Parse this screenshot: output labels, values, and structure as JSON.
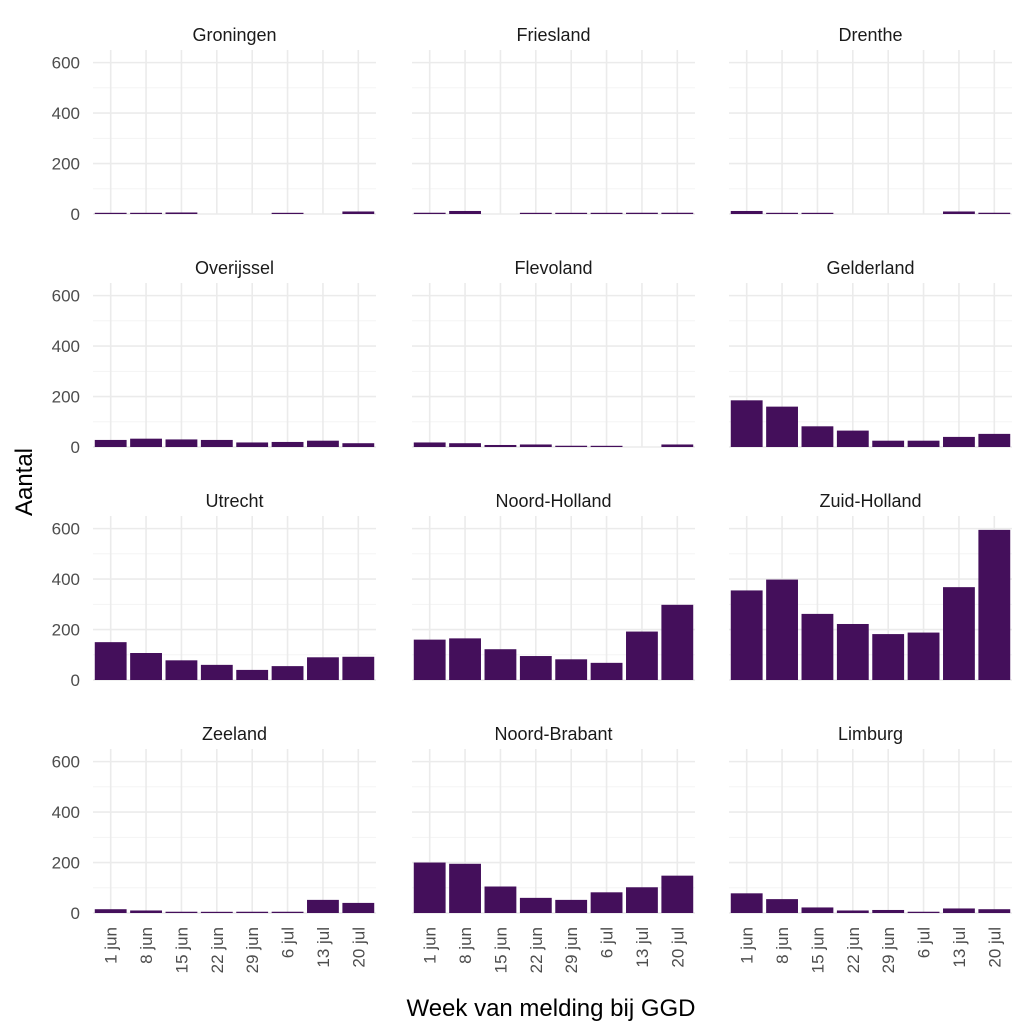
{
  "chart_data": {
    "type": "bar",
    "xlabel": "Week van melding bij GGD",
    "ylabel": "Aantal",
    "categories": [
      "1 jun",
      "8 jun",
      "15 jun",
      "22 jun",
      "29 jun",
      "6 jul",
      "13 jul",
      "20 jul"
    ],
    "ylim": [
      0,
      650
    ],
    "yticks": [
      0,
      200,
      400,
      600
    ],
    "bar_color": "#440f5b",
    "grid": true,
    "facets": [
      {
        "name": "Groningen",
        "values": [
          3,
          3,
          6,
          0,
          0,
          2,
          0,
          10
        ]
      },
      {
        "name": "Friesland",
        "values": [
          5,
          12,
          0,
          2,
          2,
          3,
          5,
          5
        ]
      },
      {
        "name": "Drenthe",
        "values": [
          12,
          3,
          3,
          0,
          0,
          0,
          10,
          5
        ]
      },
      {
        "name": "Overijssel",
        "values": [
          28,
          33,
          30,
          28,
          18,
          20,
          25,
          15
        ]
      },
      {
        "name": "Flevoland",
        "values": [
          18,
          15,
          8,
          10,
          5,
          4,
          0,
          10
        ]
      },
      {
        "name": "Gelderland",
        "values": [
          185,
          160,
          82,
          65,
          25,
          25,
          40,
          52
        ]
      },
      {
        "name": "Utrecht",
        "values": [
          150,
          107,
          78,
          60,
          40,
          55,
          90,
          92
        ]
      },
      {
        "name": "Noord-Holland",
        "values": [
          160,
          165,
          122,
          95,
          82,
          68,
          192,
          298
        ]
      },
      {
        "name": "Zuid-Holland",
        "values": [
          355,
          398,
          262,
          222,
          182,
          188,
          368,
          595
        ]
      },
      {
        "name": "Zeeland",
        "values": [
          15,
          10,
          5,
          2,
          5,
          5,
          52,
          40
        ]
      },
      {
        "name": "Noord-Brabant",
        "values": [
          200,
          195,
          105,
          60,
          52,
          82,
          102,
          148
        ]
      },
      {
        "name": "Limburg",
        "values": [
          78,
          55,
          22,
          10,
          12,
          5,
          18,
          15
        ]
      }
    ]
  }
}
